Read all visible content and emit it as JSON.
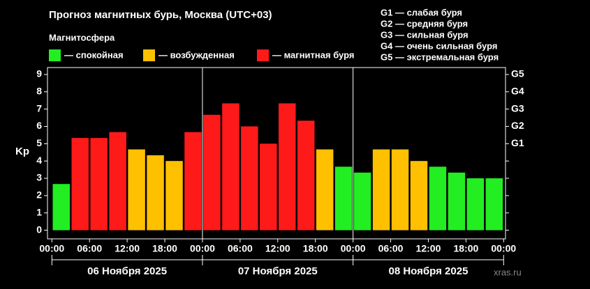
{
  "chart_data": {
    "type": "bar",
    "title": "Прогноз магнитных бурь, Москва (UTC+03)",
    "legend_title": "Магнитосфера",
    "legend": [
      {
        "name": "— спокойная",
        "color": "#22ee22"
      },
      {
        "name": "— возбужденная",
        "color": "#ffc000"
      },
      {
        "name": "— магнитная буря",
        "color": "#ff1a1a"
      }
    ],
    "storm_scale": [
      "G1 — слабая буря",
      "G2 — средняя буря",
      "G3 — сильная буря",
      "G4 — очень сильная буря",
      "G5 — экстремальная буря"
    ],
    "y_label": "Kp",
    "x": [
      1.5,
      4.5,
      7.5,
      10.5,
      13.5,
      16.5,
      19.5,
      22.5,
      25.5,
      28.5,
      31.5,
      34.5,
      37.5,
      40.5,
      43.5,
      46.5,
      49.5,
      52.5,
      55.5,
      58.5,
      61.5,
      64.5,
      67.5,
      70.5
    ],
    "values": [
      2.67,
      5.33,
      5.33,
      5.67,
      4.67,
      4.33,
      4.0,
      5.67,
      6.67,
      7.33,
      6.0,
      5.0,
      7.33,
      6.33,
      4.67,
      3.67,
      3.33,
      4.67,
      4.67,
      4.0,
      3.67,
      3.33,
      3.0,
      3.0
    ],
    "colors": [
      "#22ee22",
      "#ff1a1a",
      "#ff1a1a",
      "#ff1a1a",
      "#ffc000",
      "#ffc000",
      "#ffc000",
      "#ff1a1a",
      "#ff1a1a",
      "#ff1a1a",
      "#ff1a1a",
      "#ff1a1a",
      "#ff1a1a",
      "#ff1a1a",
      "#ffc000",
      "#22ee22",
      "#22ee22",
      "#ffc000",
      "#ffc000",
      "#ffc000",
      "#22ee22",
      "#22ee22",
      "#22ee22",
      "#22ee22"
    ],
    "xlim": [
      -0.7,
      72.3
    ],
    "xticks": [
      {
        "value": 0,
        "label": "00:00"
      },
      {
        "value": 6,
        "label": "06:00"
      },
      {
        "value": 12,
        "label": "12:00"
      },
      {
        "value": 18,
        "label": "18:00"
      },
      {
        "value": 24,
        "label": "00:00"
      },
      {
        "value": 30,
        "label": "06:00"
      },
      {
        "value": 36,
        "label": "12:00"
      },
      {
        "value": 42,
        "label": "18:00"
      },
      {
        "value": 48,
        "label": "00:00"
      },
      {
        "value": 54,
        "label": "06:00"
      },
      {
        "value": 60,
        "label": "12:00"
      },
      {
        "value": 66,
        "label": "18:00"
      },
      {
        "value": 72,
        "label": "00:00"
      }
    ],
    "ylim": [
      -0.5,
      9.4
    ],
    "yticks": [
      0,
      1,
      2,
      3,
      4,
      5,
      6,
      7,
      8,
      9
    ],
    "y2lim": [
      -0.5,
      9.4
    ],
    "y2ticks": [
      {
        "value": 5,
        "label": "G1"
      },
      {
        "value": 6,
        "label": "G2"
      },
      {
        "value": 7,
        "label": "G3"
      },
      {
        "value": 8,
        "label": "G4"
      },
      {
        "value": 9,
        "label": "G5"
      }
    ],
    "day_separators": [
      24,
      48
    ],
    "days": [
      "06 Ноября 2025",
      "07 Ноября 2025",
      "08 Ноября 2025"
    ],
    "source": "xras.ru"
  }
}
